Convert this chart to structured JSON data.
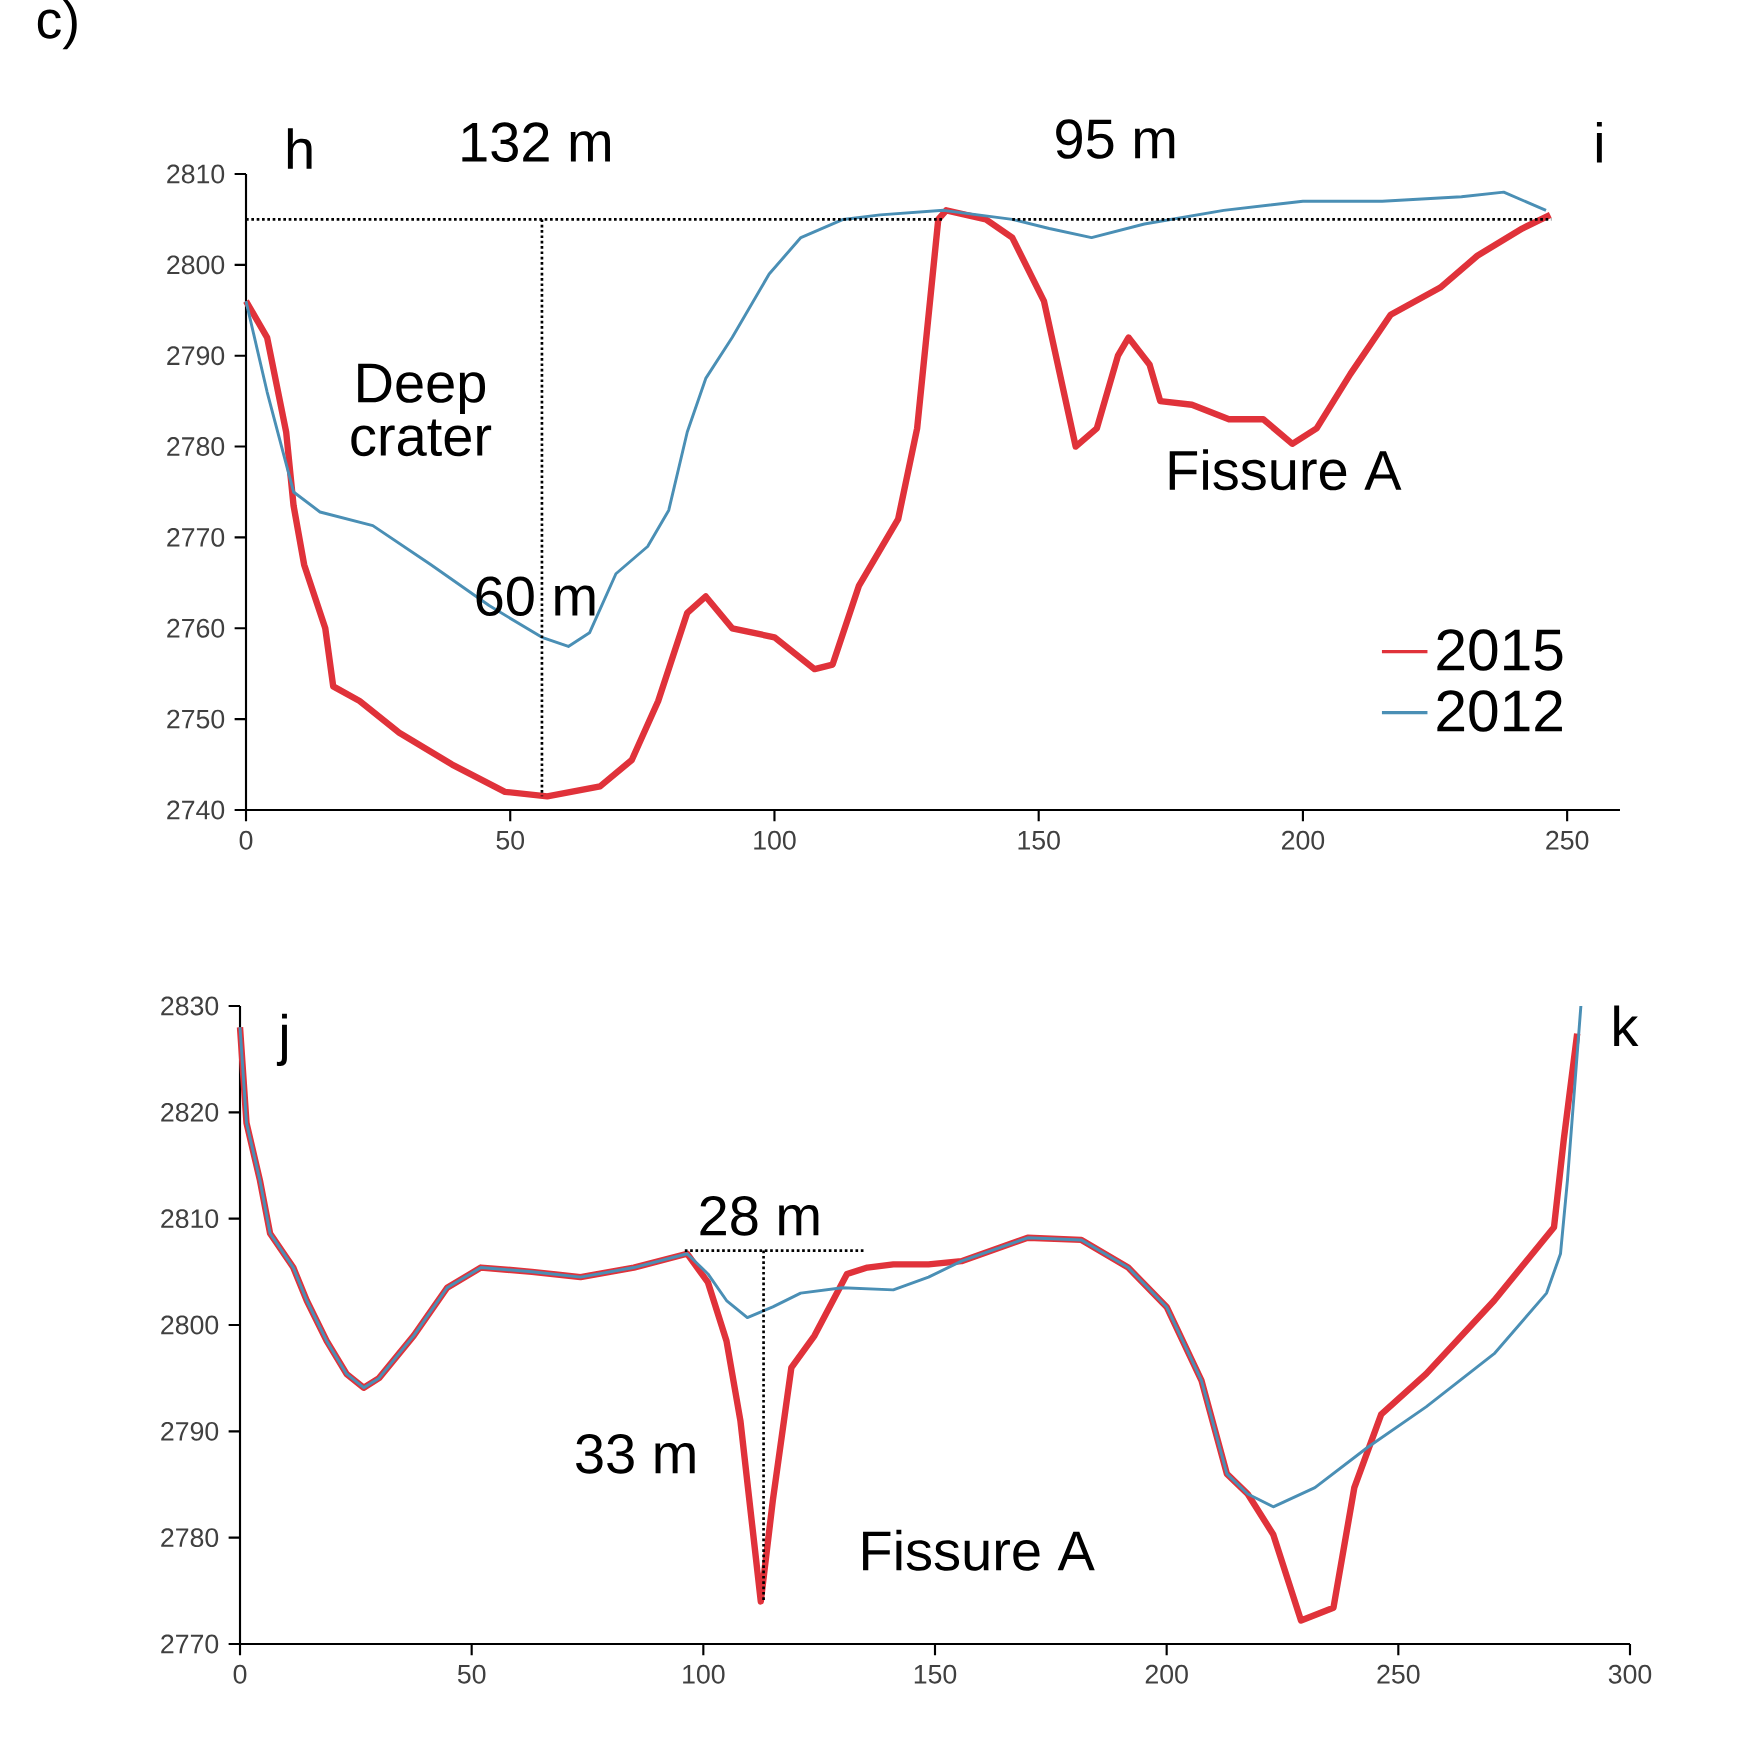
{
  "chart_data": [
    {
      "type": "line",
      "title": "c)",
      "xlim": [
        0,
        260
      ],
      "ylim": [
        2740,
        2810
      ],
      "xticks": [
        0,
        50,
        100,
        150,
        200,
        250
      ],
      "yticks": [
        2740,
        2750,
        2760,
        2770,
        2780,
        2790,
        2800,
        2810
      ],
      "legend": "bottom right",
      "grid": false,
      "series": [
        {
          "name": "2012",
          "color": "#4a8fb5",
          "x": [
            0,
            4,
            9,
            14,
            24,
            35,
            46,
            56,
            61,
            65,
            70,
            76,
            80,
            83.5,
            87,
            92,
            99,
            105,
            113,
            120,
            132,
            145,
            152,
            160,
            170,
            185,
            200,
            215,
            230,
            238,
            246
          ],
          "values": [
            2796,
            2786,
            2775,
            2772.8,
            2771.3,
            2767,
            2762.5,
            2759,
            2758,
            2759.5,
            2766,
            2769,
            2773,
            2781.6,
            2787.5,
            2792,
            2799,
            2803,
            2805,
            2805.5,
            2806,
            2805,
            2804,
            2803,
            2804.5,
            2806,
            2807,
            2807,
            2807.5,
            2808,
            2806
          ]
        },
        {
          "name": "2015",
          "color": "#e0323a",
          "x": [
            0,
            4,
            7.6,
            9,
            11,
            15,
            16.5,
            21.5,
            29,
            39,
            49,
            57,
            67,
            73,
            78,
            83.5,
            87,
            92,
            100,
            107.6,
            111,
            116,
            123.4,
            127,
            131,
            132.5,
            140,
            145,
            151,
            157,
            161,
            165,
            167,
            171,
            173,
            179,
            186,
            192.5,
            198,
            202.6,
            209,
            216.6,
            226,
            233,
            241.5,
            246.8
          ],
          "values": [
            2796,
            2792,
            2781.6,
            2773.5,
            2767,
            2760,
            2753.6,
            2752,
            2748.5,
            2745,
            2742,
            2741.5,
            2742.6,
            2745.5,
            2752,
            2761.7,
            2763.5,
            2760,
            2759,
            2755.5,
            2756,
            2764.7,
            2772,
            2782,
            2805,
            2806,
            2805,
            2803,
            2796,
            2780,
            2782,
            2790,
            2792,
            2789,
            2785,
            2784.6,
            2783,
            2783,
            2780.3,
            2782,
            2788,
            2794.5,
            2797.5,
            2801,
            2804,
            2805.5
          ]
        },
        {
          "type": "line",
          "color": "#000000",
          "line_style": "dotted",
          "x": [
            0,
            132
          ],
          "values": [
            2805,
            2805
          ]
        },
        {
          "type": "line",
          "color": "#000000",
          "line_style": "dotted",
          "x": [
            145,
            247
          ],
          "values": [
            2805,
            2805
          ]
        },
        {
          "type": "line",
          "color": "#000000",
          "line_style": "dotted",
          "x": [
            56,
            56
          ],
          "values": [
            2805,
            2741.5
          ]
        }
      ],
      "annotations": [
        "h",
        "132 m",
        "95 m",
        "i",
        "Deep crater",
        "60 m",
        "Fissure A"
      ]
    },
    {
      "type": "line",
      "xlim": [
        0,
        300
      ],
      "ylim": [
        2770,
        2830
      ],
      "xticks": [
        0,
        50,
        100,
        150,
        200,
        250,
        300
      ],
      "yticks": [
        2770,
        2780,
        2790,
        2800,
        2810,
        2820,
        2830
      ],
      "legend": false,
      "grid": false,
      "series": [
        {
          "color": "#4a8fb5",
          "x": [
            0,
            1.4,
            4.3,
            6.5,
            11.5,
            14.4,
            18.7,
            23,
            26.7,
            30,
            37.5,
            44.7,
            52,
            63,
            73.5,
            85,
            96.5,
            101,
            105,
            109.5,
            115,
            121,
            130,
            141,
            148.6,
            155.7,
            170,
            181.6,
            191.7,
            200,
            207.5,
            213,
            217.5,
            223,
            232,
            243.4,
            256,
            270.7,
            282,
            285,
            286.5,
            289.4
          ],
          "values": [
            2828,
            2819,
            2813.6,
            2808.6,
            2805.4,
            2802.3,
            2798.5,
            2795.4,
            2794.1,
            2795,
            2799,
            2803.5,
            2805.4,
            2805,
            2804.5,
            2805.4,
            2806.7,
            2804.8,
            2802.3,
            2800.7,
            2801.7,
            2803,
            2803.5,
            2803.3,
            2804.5,
            2806,
            2808.2,
            2808,
            2805.4,
            2801.7,
            2794.8,
            2786,
            2784.1,
            2782.9,
            2784.7,
            2788.5,
            2792.3,
            2797.3,
            2803,
            2806.7,
            2813.6,
            2830
          ]
        },
        {
          "color": "#e0323a",
          "x": [
            0,
            1.4,
            4.3,
            6.5,
            11.5,
            14.4,
            18.7,
            23,
            26.7,
            30,
            37.5,
            44.7,
            52,
            63,
            73.5,
            85,
            96.5,
            101,
            105,
            108,
            112.4,
            115,
            119,
            124,
            131,
            135.4,
            141,
            148.6,
            155.7,
            170,
            181.6,
            191.7,
            200,
            207.5,
            213,
            217.5,
            223,
            229,
            236,
            240.5,
            246.3,
            256,
            270.7,
            283.6,
            285.7,
            288.6
          ],
          "values": [
            2828,
            2819,
            2813.6,
            2808.6,
            2805.4,
            2802.3,
            2798.5,
            2795.4,
            2794.1,
            2795,
            2799,
            2803.5,
            2805.4,
            2805,
            2804.5,
            2805.4,
            2806.7,
            2804,
            2798.5,
            2791,
            2774,
            2783.5,
            2796,
            2799,
            2804.8,
            2805.4,
            2805.7,
            2805.7,
            2806,
            2808.2,
            2808,
            2805.4,
            2801.7,
            2794.8,
            2786,
            2784.1,
            2780.3,
            2772.2,
            2773.4,
            2784.7,
            2791.6,
            2795.4,
            2802.3,
            2809.2,
            2817.4,
            2827.4
          ]
        },
        {
          "type": "line",
          "color": "#000000",
          "line_style": "dotted",
          "x": [
            96,
            135
          ],
          "values": [
            2807,
            2807
          ]
        },
        {
          "type": "line",
          "color": "#000000",
          "line_style": "dotted",
          "x": [
            113,
            113
          ],
          "values": [
            2807,
            2774
          ]
        }
      ],
      "annotations": [
        "j",
        "k",
        "28 m",
        "33 m",
        "Fissure A"
      ]
    }
  ]
}
